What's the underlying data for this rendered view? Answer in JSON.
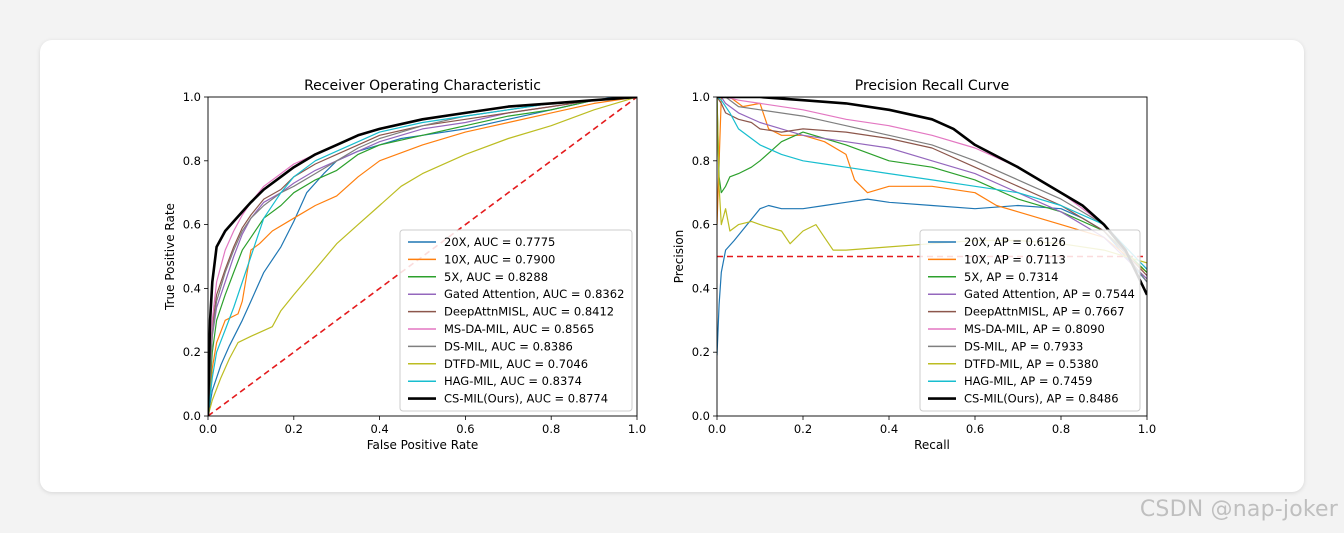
{
  "watermark": "CSDN @nap-joker",
  "chart_data": [
    {
      "type": "line",
      "title": "Receiver Operating Characteristic",
      "xlabel": "False Positive Rate",
      "ylabel": "True Positive Rate",
      "xlim": [
        0,
        1
      ],
      "ylim": [
        0,
        1
      ],
      "xticks": [
        "0.0",
        "0.2",
        "0.4",
        "0.6",
        "0.8",
        "1.0"
      ],
      "yticks": [
        "0.0",
        "0.2",
        "0.4",
        "0.6",
        "0.8",
        "1.0"
      ],
      "legend_position": "lower-right",
      "reference_line": {
        "name": "chance",
        "color": "#e41a1c",
        "dashed": true,
        "x": [
          0,
          1
        ],
        "y": [
          0,
          1
        ]
      },
      "series": [
        {
          "name": "20X, AUC = 0.7775",
          "color": "#1f77b4",
          "width": 1.2,
          "x": [
            0,
            0.01,
            0.03,
            0.05,
            0.08,
            0.1,
            0.13,
            0.17,
            0.2,
            0.23,
            0.27,
            0.3,
            0.35,
            0.4,
            0.45,
            0.5,
            0.6,
            0.7,
            0.8,
            0.9,
            0.95,
            1
          ],
          "y": [
            0,
            0.08,
            0.16,
            0.22,
            0.3,
            0.36,
            0.45,
            0.53,
            0.61,
            0.7,
            0.76,
            0.8,
            0.83,
            0.85,
            0.87,
            0.88,
            0.9,
            0.93,
            0.96,
            0.99,
            1,
            1
          ]
        },
        {
          "name": "10X, AUC = 0.7900",
          "color": "#ff7f0e",
          "width": 1.2,
          "x": [
            0,
            0.01,
            0.02,
            0.04,
            0.07,
            0.08,
            0.1,
            0.12,
            0.15,
            0.2,
            0.25,
            0.3,
            0.35,
            0.4,
            0.5,
            0.6,
            0.7,
            0.8,
            0.9,
            1
          ],
          "y": [
            0,
            0.15,
            0.23,
            0.3,
            0.32,
            0.36,
            0.52,
            0.54,
            0.58,
            0.62,
            0.66,
            0.69,
            0.75,
            0.8,
            0.85,
            0.89,
            0.92,
            0.95,
            0.98,
            1
          ]
        },
        {
          "name": "5X, AUC = 0.8288",
          "color": "#2ca02c",
          "width": 1.2,
          "x": [
            0,
            0.01,
            0.02,
            0.04,
            0.06,
            0.08,
            0.1,
            0.13,
            0.17,
            0.2,
            0.25,
            0.3,
            0.35,
            0.4,
            0.5,
            0.6,
            0.7,
            0.8,
            0.9,
            1
          ],
          "y": [
            0,
            0.2,
            0.3,
            0.38,
            0.45,
            0.52,
            0.56,
            0.62,
            0.66,
            0.7,
            0.74,
            0.77,
            0.82,
            0.85,
            0.88,
            0.91,
            0.94,
            0.96,
            0.99,
            1
          ]
        },
        {
          "name": "Gated Attention, AUC = 0.8362",
          "color": "#9467bd",
          "width": 1.2,
          "x": [
            0,
            0.01,
            0.02,
            0.04,
            0.06,
            0.08,
            0.1,
            0.13,
            0.17,
            0.2,
            0.25,
            0.3,
            0.35,
            0.4,
            0.5,
            0.6,
            0.7,
            0.8,
            0.9,
            1
          ],
          "y": [
            0,
            0.25,
            0.34,
            0.42,
            0.5,
            0.57,
            0.62,
            0.67,
            0.7,
            0.73,
            0.77,
            0.8,
            0.83,
            0.86,
            0.9,
            0.92,
            0.95,
            0.97,
            0.99,
            1
          ]
        },
        {
          "name": "DeepAttnMISL, AUC = 0.8412",
          "color": "#8c564b",
          "width": 1.2,
          "x": [
            0,
            0.01,
            0.02,
            0.04,
            0.06,
            0.08,
            0.1,
            0.13,
            0.17,
            0.2,
            0.25,
            0.3,
            0.35,
            0.4,
            0.5,
            0.6,
            0.7,
            0.8,
            0.9,
            1
          ],
          "y": [
            0,
            0.28,
            0.38,
            0.46,
            0.53,
            0.59,
            0.63,
            0.68,
            0.71,
            0.75,
            0.79,
            0.82,
            0.85,
            0.88,
            0.91,
            0.93,
            0.95,
            0.97,
            0.99,
            1
          ]
        },
        {
          "name": "MS-DA-MIL, AUC = 0.8565",
          "color": "#e377c2",
          "width": 1.2,
          "x": [
            0,
            0.01,
            0.02,
            0.04,
            0.06,
            0.08,
            0.1,
            0.13,
            0.17,
            0.2,
            0.25,
            0.3,
            0.35,
            0.4,
            0.5,
            0.6,
            0.7,
            0.8,
            0.9,
            1
          ],
          "y": [
            0,
            0.3,
            0.42,
            0.52,
            0.58,
            0.63,
            0.67,
            0.72,
            0.76,
            0.79,
            0.82,
            0.85,
            0.88,
            0.9,
            0.93,
            0.95,
            0.97,
            0.98,
            0.99,
            1
          ]
        },
        {
          "name": "DS-MIL, AUC = 0.8386",
          "color": "#7f7f7f",
          "width": 1.2,
          "x": [
            0,
            0.01,
            0.02,
            0.04,
            0.06,
            0.08,
            0.1,
            0.13,
            0.17,
            0.2,
            0.25,
            0.3,
            0.35,
            0.4,
            0.5,
            0.6,
            0.7,
            0.8,
            0.9,
            1
          ],
          "y": [
            0,
            0.26,
            0.36,
            0.45,
            0.52,
            0.58,
            0.62,
            0.66,
            0.7,
            0.72,
            0.76,
            0.8,
            0.84,
            0.87,
            0.91,
            0.94,
            0.96,
            0.98,
            0.99,
            1
          ]
        },
        {
          "name": "DTFD-MIL, AUC = 0.7046",
          "color": "#bcbd22",
          "width": 1.2,
          "x": [
            0,
            0.01,
            0.03,
            0.05,
            0.07,
            0.1,
            0.15,
            0.17,
            0.2,
            0.25,
            0.3,
            0.35,
            0.4,
            0.45,
            0.5,
            0.6,
            0.7,
            0.8,
            0.9,
            1
          ],
          "y": [
            0,
            0.05,
            0.12,
            0.18,
            0.23,
            0.25,
            0.28,
            0.33,
            0.38,
            0.46,
            0.54,
            0.6,
            0.66,
            0.72,
            0.76,
            0.82,
            0.87,
            0.91,
            0.96,
            1
          ]
        },
        {
          "name": "HAG-MIL, AUC = 0.8374",
          "color": "#17becf",
          "width": 1.2,
          "x": [
            0,
            0.01,
            0.02,
            0.04,
            0.06,
            0.08,
            0.1,
            0.13,
            0.17,
            0.2,
            0.25,
            0.3,
            0.35,
            0.4,
            0.5,
            0.6,
            0.7,
            0.8,
            0.9,
            1
          ],
          "y": [
            0,
            0.12,
            0.2,
            0.27,
            0.34,
            0.42,
            0.5,
            0.62,
            0.7,
            0.75,
            0.8,
            0.83,
            0.86,
            0.89,
            0.92,
            0.94,
            0.96,
            0.98,
            0.99,
            1
          ]
        },
        {
          "name": "CS-MIL(Ours), AUC = 0.8774",
          "color": "#000000",
          "width": 2.6,
          "x": [
            0,
            0.005,
            0.01,
            0.02,
            0.04,
            0.06,
            0.08,
            0.1,
            0.13,
            0.17,
            0.2,
            0.25,
            0.3,
            0.35,
            0.4,
            0.5,
            0.6,
            0.7,
            0.8,
            0.9,
            1
          ],
          "y": [
            0,
            0.3,
            0.42,
            0.53,
            0.58,
            0.61,
            0.64,
            0.67,
            0.71,
            0.75,
            0.78,
            0.82,
            0.85,
            0.88,
            0.9,
            0.93,
            0.95,
            0.97,
            0.98,
            0.99,
            1
          ]
        }
      ]
    },
    {
      "type": "line",
      "title": "Precision Recall Curve",
      "xlabel": "Recall",
      "ylabel": "Precision",
      "xlim": [
        0,
        1
      ],
      "ylim": [
        0,
        1
      ],
      "xticks": [
        "0.0",
        "0.2",
        "0.4",
        "0.6",
        "0.8",
        "1.0"
      ],
      "yticks": [
        "0.0",
        "0.2",
        "0.4",
        "0.6",
        "0.8",
        "1.0"
      ],
      "legend_position": "lower-right",
      "reference_line": {
        "name": "baseline",
        "color": "#e41a1c",
        "dashed": true,
        "x": [
          0,
          1
        ],
        "y": [
          0.5,
          0.5
        ]
      },
      "series": [
        {
          "name": "20X, AP = 0.6126",
          "color": "#1f77b4",
          "width": 1.2,
          "x": [
            0,
            0.005,
            0.01,
            0.02,
            0.04,
            0.07,
            0.1,
            0.12,
            0.15,
            0.2,
            0.25,
            0.3,
            0.35,
            0.4,
            0.5,
            0.6,
            0.7,
            0.8,
            0.85,
            0.9,
            0.95,
            1
          ],
          "y": [
            0.19,
            0.35,
            0.45,
            0.52,
            0.55,
            0.6,
            0.65,
            0.66,
            0.65,
            0.65,
            0.66,
            0.67,
            0.68,
            0.67,
            0.66,
            0.65,
            0.66,
            0.65,
            0.62,
            0.58,
            0.5,
            0.42
          ]
        },
        {
          "name": "10X, AP = 0.7113",
          "color": "#ff7f0e",
          "width": 1.2,
          "x": [
            0,
            0.01,
            0.03,
            0.06,
            0.1,
            0.12,
            0.15,
            0.2,
            0.25,
            0.3,
            0.32,
            0.35,
            0.4,
            0.5,
            0.6,
            0.65,
            0.7,
            0.8,
            0.9,
            1
          ],
          "y": [
            0.6,
            1,
            1,
            0.97,
            0.98,
            0.9,
            0.88,
            0.88,
            0.86,
            0.82,
            0.74,
            0.7,
            0.72,
            0.72,
            0.7,
            0.66,
            0.64,
            0.6,
            0.56,
            0.45
          ]
        },
        {
          "name": "5X, AP = 0.7314",
          "color": "#2ca02c",
          "width": 1.2,
          "x": [
            0,
            0.005,
            0.01,
            0.02,
            0.03,
            0.05,
            0.08,
            0.1,
            0.15,
            0.2,
            0.25,
            0.3,
            0.4,
            0.5,
            0.6,
            0.7,
            0.8,
            0.9,
            1
          ],
          "y": [
            1,
            0.75,
            0.7,
            0.72,
            0.75,
            0.76,
            0.78,
            0.8,
            0.86,
            0.89,
            0.87,
            0.85,
            0.8,
            0.78,
            0.74,
            0.68,
            0.64,
            0.58,
            0.45
          ]
        },
        {
          "name": "Gated Attention, AP = 0.7544",
          "color": "#9467bd",
          "width": 1.2,
          "x": [
            0,
            0.01,
            0.02,
            0.05,
            0.1,
            0.15,
            0.2,
            0.3,
            0.4,
            0.5,
            0.6,
            0.7,
            0.8,
            0.9,
            1
          ],
          "y": [
            1,
            1,
            0.98,
            0.95,
            0.92,
            0.9,
            0.88,
            0.86,
            0.84,
            0.8,
            0.76,
            0.7,
            0.64,
            0.56,
            0.43
          ]
        },
        {
          "name": "DeepAttnMISL, AP = 0.7667",
          "color": "#8c564b",
          "width": 1.2,
          "x": [
            0,
            0.01,
            0.02,
            0.05,
            0.08,
            0.1,
            0.15,
            0.2,
            0.3,
            0.4,
            0.5,
            0.6,
            0.7,
            0.8,
            0.9,
            1
          ],
          "y": [
            1,
            0.98,
            0.95,
            0.93,
            0.92,
            0.9,
            0.89,
            0.9,
            0.89,
            0.87,
            0.84,
            0.78,
            0.72,
            0.66,
            0.58,
            0.44
          ]
        },
        {
          "name": "MS-DA-MIL, AP = 0.8090",
          "color": "#e377c2",
          "width": 1.2,
          "x": [
            0,
            0.02,
            0.05,
            0.1,
            0.2,
            0.3,
            0.4,
            0.5,
            0.6,
            0.7,
            0.8,
            0.85,
            0.9,
            1
          ],
          "y": [
            1,
            1,
            0.99,
            0.98,
            0.96,
            0.93,
            0.91,
            0.88,
            0.84,
            0.78,
            0.7,
            0.65,
            0.6,
            0.46
          ]
        },
        {
          "name": "DS-MIL, AP = 0.7933",
          "color": "#7f7f7f",
          "width": 1.2,
          "x": [
            0,
            0.02,
            0.05,
            0.1,
            0.2,
            0.3,
            0.4,
            0.5,
            0.6,
            0.7,
            0.8,
            0.9,
            1
          ],
          "y": [
            1,
            1,
            0.97,
            0.96,
            0.94,
            0.91,
            0.88,
            0.85,
            0.8,
            0.74,
            0.68,
            0.6,
            0.42
          ]
        },
        {
          "name": "DTFD-MIL, AP = 0.5380",
          "color": "#bcbd22",
          "width": 1.2,
          "x": [
            0,
            0.005,
            0.01,
            0.02,
            0.03,
            0.05,
            0.08,
            0.1,
            0.15,
            0.17,
            0.2,
            0.23,
            0.25,
            0.27,
            0.3,
            0.4,
            0.5,
            0.6,
            0.7,
            0.8,
            0.9,
            1
          ],
          "y": [
            1,
            0.72,
            0.6,
            0.65,
            0.58,
            0.6,
            0.61,
            0.6,
            0.58,
            0.54,
            0.58,
            0.6,
            0.56,
            0.52,
            0.52,
            0.53,
            0.54,
            0.55,
            0.55,
            0.54,
            0.52,
            0.48
          ]
        },
        {
          "name": "HAG-MIL, AP = 0.7459",
          "color": "#17becf",
          "width": 1.2,
          "x": [
            0,
            0.01,
            0.03,
            0.05,
            0.1,
            0.15,
            0.2,
            0.25,
            0.3,
            0.4,
            0.5,
            0.6,
            0.7,
            0.8,
            0.9,
            1
          ],
          "y": [
            1,
            0.99,
            0.95,
            0.9,
            0.85,
            0.82,
            0.8,
            0.79,
            0.78,
            0.76,
            0.74,
            0.72,
            0.7,
            0.66,
            0.6,
            0.46
          ]
        },
        {
          "name": "CS-MIL(Ours), AP = 0.8486",
          "color": "#000000",
          "width": 2.6,
          "x": [
            0,
            0.02,
            0.1,
            0.2,
            0.3,
            0.4,
            0.5,
            0.55,
            0.6,
            0.7,
            0.8,
            0.85,
            0.9,
            0.95,
            1
          ],
          "y": [
            1,
            1,
            1,
            0.99,
            0.98,
            0.96,
            0.93,
            0.9,
            0.85,
            0.78,
            0.7,
            0.66,
            0.6,
            0.52,
            0.38
          ]
        }
      ]
    }
  ]
}
